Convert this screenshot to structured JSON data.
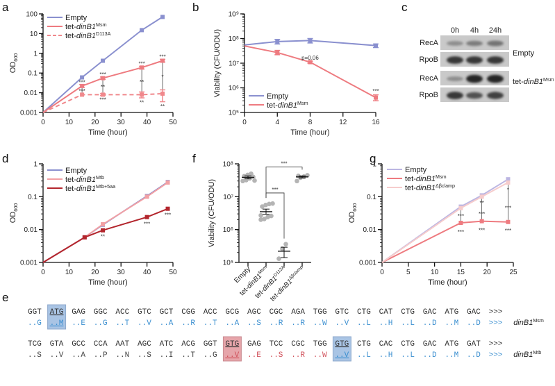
{
  "panel_labels": {
    "a": "a",
    "b": "b",
    "c": "c",
    "d": "d",
    "e": "e",
    "f": "f",
    "g": "g"
  },
  "colors": {
    "empty": "#8a90cf",
    "msm": "#ee7b80",
    "d113a": "#f0888c",
    "mtb": "#f2a0a4",
    "mtb5aa": "#b3262d",
    "bclamp": "#f6cccc",
    "empty_g": "#bcb6e2",
    "hl_blue": "#a9c4e4",
    "hl_red": "#e6a5aa",
    "seq_blue": "#3b8fd0",
    "seq_red": "#d0505a",
    "seq_gray": "#444444"
  },
  "chart_data": [
    {
      "panel": "a",
      "type": "line",
      "xlabel": "Time (hour)",
      "ylabel": "OD",
      "ylabel_sub": "600",
      "xlim": [
        0,
        50
      ],
      "ylim": [
        0.001,
        100
      ],
      "yscale": "log",
      "xticks": [
        0,
        10,
        20,
        30,
        40,
        50
      ],
      "yticks": [
        0.001,
        0.01,
        0.1,
        1,
        10,
        100
      ],
      "ytick_labels": [
        "0.001",
        "0.01",
        "0.1",
        "1",
        "10",
        "100"
      ],
      "legend": "top-left",
      "series": [
        {
          "name": {
            "prefix": "Empty"
          },
          "color_key": "empty",
          "dash": false,
          "x": [
            0,
            15,
            23,
            38,
            46
          ],
          "y": [
            0.001,
            0.06,
            0.42,
            15,
            70
          ]
        },
        {
          "name": {
            "prefix": "tet-",
            "italic": "dinB1",
            "sup": "Msm"
          },
          "color_key": "msm",
          "dash": false,
          "x": [
            0,
            15,
            23,
            38,
            46
          ],
          "y": [
            0.001,
            0.022,
            0.055,
            0.19,
            0.42
          ],
          "err_low": [
            null,
            0.019,
            0.048,
            0.16,
            0.36
          ],
          "err_high": [
            null,
            0.026,
            0.063,
            0.22,
            0.5
          ]
        },
        {
          "name": {
            "prefix": "tet-",
            "italic": "dinB1",
            "sup": "D113A"
          },
          "color_key": "d113a",
          "dash": true,
          "x": [
            0,
            15,
            23,
            38,
            46
          ],
          "y": [
            0.001,
            0.008,
            0.008,
            0.008,
            0.009
          ],
          "err_low": [
            null,
            null,
            0.0072,
            0.0055,
            0.0035
          ],
          "err_high": [
            null,
            null,
            0.009,
            0.011,
            0.014
          ]
        }
      ],
      "connectors": [
        [
          15,
          0.022,
          0.008
        ],
        [
          23,
          0.055,
          0.008
        ],
        [
          38,
          0.19,
          0.008
        ],
        [
          46,
          0.42,
          0.009
        ]
      ],
      "annotations": [
        {
          "x": 15,
          "y": 0.034,
          "text": "***"
        },
        {
          "x": 15,
          "y": 0.0125,
          "text": "***"
        },
        {
          "x": 23,
          "y": 0.085,
          "text": "***"
        },
        {
          "x": 23,
          "y": 0.02,
          "text": "**"
        },
        {
          "x": 23,
          "y": 0.0045,
          "text": "***"
        },
        {
          "x": 38,
          "y": 0.3,
          "text": "***"
        },
        {
          "x": 38,
          "y": 0.035,
          "text": "**"
        },
        {
          "x": 38,
          "y": 0.0033,
          "text": "**"
        },
        {
          "x": 46,
          "y": 0.68,
          "text": "***"
        },
        {
          "x": 46,
          "y": 0.065,
          "text": "*"
        },
        {
          "x": 46,
          "y": 0.0021,
          "text": "**"
        }
      ]
    },
    {
      "panel": "b",
      "type": "line",
      "xlabel": "Time (hour)",
      "ylabel": "Viability (CFU/ODU)",
      "xlim": [
        0,
        16
      ],
      "ylim": [
        100000,
        1000000000
      ],
      "yscale": "log",
      "xticks": [
        0,
        4,
        8,
        12,
        16
      ],
      "yticks": [
        100000,
        1000000,
        10000000,
        100000000,
        1000000000
      ],
      "ytick_labels": [
        "10⁵",
        "10⁶",
        "10⁷",
        "10⁸",
        "10⁹"
      ],
      "legend": "bottom-left",
      "series": [
        {
          "name": {
            "prefix": "Empty"
          },
          "color_key": "empty",
          "dash": false,
          "x": [
            0,
            4,
            8,
            16
          ],
          "y": [
            55000000,
            75000000,
            83000000,
            52000000
          ],
          "err_low": [
            47000000,
            60000000,
            66000000,
            43000000
          ],
          "err_high": [
            62000000,
            92000000,
            100000000,
            60000000
          ]
        },
        {
          "name": {
            "prefix": "tet-",
            "italic": "dinB1",
            "sup": "Msm"
          },
          "color_key": "msm",
          "dash": false,
          "x": [
            0,
            4,
            8,
            16
          ],
          "y": [
            50000000,
            27000000,
            11000000,
            400000
          ],
          "err_low": [
            45000000,
            22000000,
            10000000,
            300000
          ],
          "err_high": [
            56000000,
            33000000,
            12000000,
            520000
          ]
        }
      ],
      "annotations": [
        {
          "x": 8,
          "y": 17000000,
          "text": "p=0.06"
        },
        {
          "x": 16,
          "y": 750000,
          "text": "***"
        }
      ]
    },
    {
      "panel": "d",
      "type": "line",
      "xlabel": "Time (hour)",
      "ylabel": "OD",
      "ylabel_sub": "600",
      "xlim": [
        0,
        50
      ],
      "ylim": [
        0.001,
        1
      ],
      "yscale": "log",
      "xticks": [
        0,
        10,
        20,
        30,
        40,
        50
      ],
      "yticks": [
        0.001,
        0.01,
        0.1,
        1
      ],
      "ytick_labels": [
        "0.001",
        "0.01",
        "0.1",
        "1"
      ],
      "legend": "top-left",
      "series": [
        {
          "name": {
            "prefix": "Empty"
          },
          "color_key": "empty",
          "dash": false,
          "x": [
            0,
            16,
            23,
            40,
            48
          ],
          "y": [
            0.001,
            0.0058,
            0.014,
            0.105,
            0.28
          ]
        },
        {
          "name": {
            "prefix": "tet-",
            "italic": "dinB1",
            "sup": "Mtb"
          },
          "color_key": "mtb",
          "dash": false,
          "x": [
            0,
            16,
            23,
            40,
            48
          ],
          "y": [
            0.001,
            0.0058,
            0.0145,
            0.1,
            0.27
          ]
        },
        {
          "name": {
            "prefix": "tet-",
            "italic": "dinB1",
            "sup": "Mtb+5aa"
          },
          "color_key": "mtb5aa",
          "dash": false,
          "x": [
            0,
            16,
            23,
            40,
            48
          ],
          "y": [
            0.001,
            0.0058,
            0.0095,
            0.024,
            0.043
          ]
        }
      ],
      "annotations": [
        {
          "x": 23,
          "y": 0.0062,
          "text": "**"
        },
        {
          "x": 40,
          "y": 0.015,
          "text": "***"
        },
        {
          "x": 48,
          "y": 0.028,
          "text": "***"
        }
      ]
    },
    {
      "panel": "f",
      "type": "scatter",
      "xlabel": "",
      "ylabel": "Viability (CFU/ODU)",
      "ylim": [
        100000,
        100000000
      ],
      "yscale": "log",
      "yticks": [
        100000,
        1000000,
        10000000,
        100000000
      ],
      "ytick_labels": [
        "10⁵",
        "10⁶",
        "10⁷",
        "10⁸"
      ],
      "categories": [
        {
          "prefix": "Empty"
        },
        {
          "prefix": "tet-",
          "italic": "dinB1",
          "sup": "Msm"
        },
        {
          "prefix": "tet-",
          "italic": "dinB1",
          "sup": "D113A"
        },
        {
          "prefix": "tet-",
          "italic": "dinB1",
          "sup": "Δβclamp"
        }
      ],
      "points": [
        [
          30000000,
          32000000,
          36000000,
          40000000,
          42000000,
          46000000,
          50000000,
          31000000
        ],
        [
          2000000,
          2100000,
          2400000,
          2600000,
          5000000,
          5600000,
          6000000,
          6200000,
          2700000
        ],
        [
          130000,
          260000,
          360000
        ],
        [
          30000000,
          38000000,
          41000000,
          45000000,
          43000000
        ]
      ],
      "mean": [
        39000000,
        3500000,
        220000,
        40000000
      ],
      "sem_low": [
        35000000,
        2900000,
        140000,
        37000000
      ],
      "sem_high": [
        43000000,
        4200000,
        290000,
        43000000
      ],
      "brackets": [
        {
          "from": 1,
          "to": 3,
          "y": 80000000,
          "text": "***"
        },
        {
          "from": 1,
          "to": 2,
          "y": 13000000,
          "text": "***"
        }
      ]
    },
    {
      "panel": "g",
      "type": "line",
      "xlabel": "Time (hour)",
      "ylabel": "OD",
      "ylabel_sub": "600",
      "xlim": [
        0,
        25
      ],
      "ylim": [
        0.001,
        1
      ],
      "yscale": "log",
      "xticks": [
        0,
        5,
        10,
        15,
        20,
        25
      ],
      "yticks": [
        0.001,
        0.01,
        0.1,
        1
      ],
      "ytick_labels": [
        "0.001",
        "0.01",
        "0.1",
        "1"
      ],
      "legend": "top-left",
      "series": [
        {
          "name": {
            "prefix": "Empty"
          },
          "color_key": "empty_g",
          "dash": false,
          "x": [
            0,
            15,
            19,
            24
          ],
          "y": [
            0.001,
            0.05,
            0.11,
            0.34
          ]
        },
        {
          "name": {
            "prefix": "tet-",
            "italic": "dinB1",
            "sup": "Msm"
          },
          "color_key": "msm",
          "dash": false,
          "x": [
            0,
            15,
            19,
            24
          ],
          "y": [
            0.001,
            0.016,
            0.018,
            0.017
          ]
        },
        {
          "name": {
            "prefix": "tet-",
            "italic": "dinB1",
            "sup": "Δβclamp"
          },
          "color_key": "bclamp",
          "dash": false,
          "x": [
            0,
            15,
            19,
            24
          ],
          "y": [
            0.001,
            0.045,
            0.1,
            0.27
          ]
        }
      ],
      "connectors": [
        [
          15,
          0.045,
          0.016
        ],
        [
          19,
          0.1,
          0.018
        ],
        [
          24,
          0.27,
          0.017
        ]
      ],
      "annotations": [
        {
          "x": 15,
          "y": 0.026,
          "text": "***"
        },
        {
          "x": 15,
          "y": 0.0085,
          "text": "***"
        },
        {
          "x": 19,
          "y": 0.065,
          "text": "**"
        },
        {
          "x": 19,
          "y": 0.03,
          "text": "***"
        },
        {
          "x": 19,
          "y": 0.0095,
          "text": "***"
        },
        {
          "x": 24,
          "y": 0.16,
          "text": "*"
        },
        {
          "x": 24,
          "y": 0.045,
          "text": "***"
        },
        {
          "x": 24,
          "y": 0.0093,
          "text": "***"
        }
      ]
    }
  ],
  "blot": {
    "lanes": [
      "0h",
      "4h",
      "24h"
    ],
    "groups": [
      {
        "label": {
          "prefix": "Empty"
        },
        "rows": [
          {
            "protein": "RecA",
            "band_intensity": [
              0.35,
              0.45,
              0.5
            ]
          },
          {
            "protein": "RpoB",
            "band_intensity": [
              0.85,
              0.85,
              0.85
            ]
          }
        ]
      },
      {
        "label": {
          "prefix": "tet-",
          "italic": "dinB1",
          "sup": "Msm"
        },
        "rows": [
          {
            "protein": "RecA",
            "band_intensity": [
              0.35,
              0.95,
              0.95
            ]
          },
          {
            "protein": "RpoB",
            "band_intensity": [
              0.85,
              0.7,
              0.8
            ]
          }
        ]
      }
    ]
  },
  "sequence": {
    "rows": [
      {
        "codons": [
          "GGT",
          "ATG",
          "GAG",
          "GGC",
          "ACC",
          "GTC",
          "GCT",
          "CGG",
          "ACC",
          "GCG",
          "AGC",
          "CGC",
          "AGA",
          "TGG",
          "GTC",
          "CTG",
          "CAT",
          "CTG",
          "GAC",
          "ATG",
          "GAC",
          ">>>"
        ],
        "aa": [
          "..G",
          "..M",
          "..E",
          "..G",
          "..T",
          "..V",
          "..A",
          "..R",
          "..T",
          "..A",
          "..S",
          "..R",
          "..R",
          "..W",
          "..V",
          "..L",
          "..H",
          "..L",
          "..D",
          "..M",
          "..D",
          ">>>"
        ],
        "aa_colors": [
          "blue",
          "blue",
          "blue",
          "blue",
          "blue",
          "blue",
          "blue",
          "blue",
          "blue",
          "blue",
          "blue",
          "blue",
          "blue",
          "blue",
          "blue",
          "blue",
          "blue",
          "blue",
          "blue",
          "blue",
          "blue",
          "blue"
        ],
        "highlights": [
          {
            "index": 1,
            "color": "blue"
          }
        ],
        "label": {
          "italic": "dinB1",
          "sup": "Msm"
        }
      },
      {
        "codons": [
          "TCG",
          "GTA",
          "GCC",
          "CCA",
          "AAT",
          "AGC",
          "ATC",
          "ACG",
          "GGT",
          "GTG",
          "GAG",
          "TCC",
          "CGC",
          "TGG",
          "GTG",
          "CTG",
          "CAC",
          "CTG",
          "GAC",
          "ATG",
          "GAT",
          ">>>"
        ],
        "aa": [
          "..S",
          "..V",
          "..A",
          "..P",
          "..N",
          "..S",
          "..I",
          "..T",
          "..G",
          "..V",
          "..E",
          "..S",
          "..R",
          "..W",
          "..V",
          "..L",
          "..H",
          "..L",
          "..D",
          "..M",
          "..D",
          ">>>"
        ],
        "aa_colors": [
          "gray",
          "gray",
          "gray",
          "gray",
          "gray",
          "gray",
          "gray",
          "gray",
          "gray",
          "red",
          "red",
          "red",
          "red",
          "red",
          "blue",
          "blue",
          "blue",
          "blue",
          "blue",
          "blue",
          "blue",
          "blue"
        ],
        "highlights": [
          {
            "index": 9,
            "color": "red"
          },
          {
            "index": 14,
            "color": "blue"
          }
        ],
        "label": {
          "italic": "dinB1",
          "sup": "Mtb"
        }
      }
    ]
  }
}
